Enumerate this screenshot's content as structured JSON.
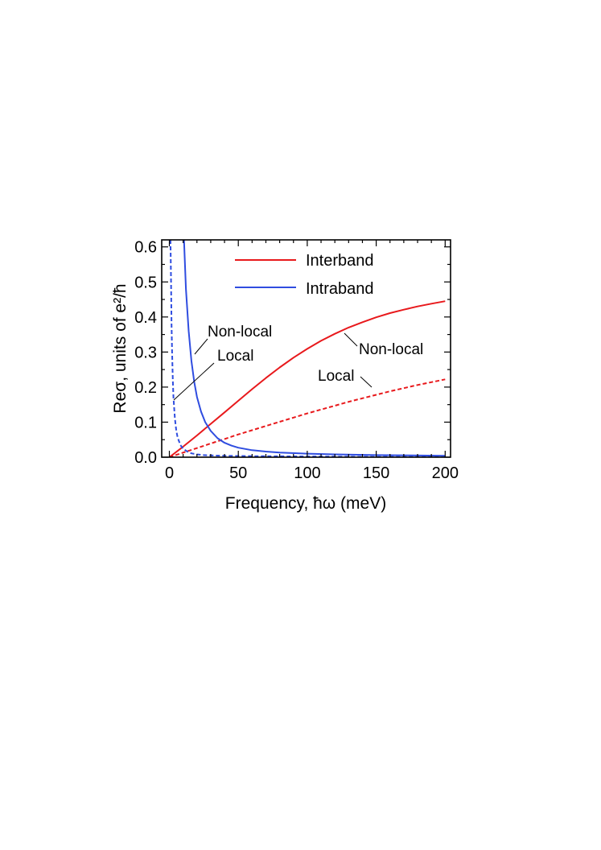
{
  "chart_data": {
    "type": "line",
    "xlabel": "Frequency, ħω (meV)",
    "ylabel": "Reσ, units of e²/ħ",
    "xlim": [
      -5,
      205
    ],
    "ylim": [
      0,
      0.62
    ],
    "xticks": [
      0,
      50,
      100,
      150,
      200
    ],
    "xtick_labels": [
      "0",
      "50",
      "100",
      "150",
      "200"
    ],
    "yticks": [
      0.0,
      0.1,
      0.2,
      0.3,
      0.4,
      0.5,
      0.6
    ],
    "ytick_labels": [
      "0.0",
      "0.1",
      "0.2",
      "0.3",
      "0.4",
      "0.5",
      "0.6"
    ],
    "grid": false,
    "legend_position": "top-center",
    "legend": [
      {
        "label": "Interband",
        "color": "#e8191c"
      },
      {
        "label": "Intraband",
        "color": "#2f4de0"
      }
    ],
    "series": [
      {
        "name": "Interband",
        "model": "Non-local",
        "color": "#e8191c",
        "dash": "solid",
        "x": [
          0,
          10,
          20,
          30,
          40,
          50,
          60,
          70,
          80,
          90,
          100,
          110,
          120,
          130,
          140,
          150,
          160,
          170,
          180,
          190,
          200
        ],
        "y": [
          0.0,
          0.03,
          0.062,
          0.095,
          0.128,
          0.161,
          0.194,
          0.226,
          0.256,
          0.284,
          0.309,
          0.332,
          0.352,
          0.37,
          0.385,
          0.399,
          0.411,
          0.421,
          0.43,
          0.438,
          0.445
        ]
      },
      {
        "name": "Interband",
        "model": "Local",
        "color": "#e8191c",
        "dash": "dashed",
        "x": [
          0,
          10,
          20,
          30,
          40,
          50,
          60,
          70,
          80,
          90,
          100,
          110,
          120,
          130,
          140,
          150,
          160,
          170,
          180,
          190,
          200
        ],
        "y": [
          0.0,
          0.013,
          0.026,
          0.039,
          0.052,
          0.065,
          0.077,
          0.089,
          0.101,
          0.113,
          0.125,
          0.136,
          0.147,
          0.158,
          0.168,
          0.178,
          0.188,
          0.197,
          0.206,
          0.214,
          0.222
        ]
      },
      {
        "name": "Intraband",
        "model": "Non-local",
        "color": "#2f4de0",
        "dash": "solid",
        "x": [
          10.6,
          12,
          14,
          16,
          18,
          20,
          23,
          26,
          30,
          35,
          40,
          45,
          50,
          60,
          70,
          80,
          100,
          120,
          150,
          175,
          200
        ],
        "y": [
          0.62,
          0.48,
          0.36,
          0.275,
          0.215,
          0.172,
          0.13,
          0.1,
          0.075,
          0.054,
          0.041,
          0.033,
          0.027,
          0.02,
          0.016,
          0.013,
          0.01,
          0.008,
          0.006,
          0.005,
          0.004
        ]
      },
      {
        "name": "Intraband",
        "model": "Local",
        "color": "#2f4de0",
        "dash": "dashed",
        "x": [
          0.8,
          1.2,
          1.6,
          2,
          2.5,
          3,
          4,
          5,
          6,
          8,
          10,
          13,
          16,
          20,
          25,
          30,
          40,
          60,
          100,
          150,
          200
        ],
        "y": [
          0.62,
          0.5,
          0.38,
          0.3,
          0.22,
          0.17,
          0.11,
          0.076,
          0.056,
          0.035,
          0.024,
          0.016,
          0.011,
          0.008,
          0.006,
          0.005,
          0.004,
          0.003,
          0.002,
          0.001,
          0.001
        ]
      }
    ],
    "annotations": [
      {
        "text": "Non-local",
        "target_series": "Intraband",
        "target_model": "Non-local"
      },
      {
        "text": "Local",
        "target_series": "Intraband",
        "target_model": "Local"
      },
      {
        "text": "Non-local",
        "target_series": "Interband",
        "target_model": "Non-local"
      },
      {
        "text": "Local",
        "target_series": "Interband",
        "target_model": "Local"
      }
    ]
  }
}
